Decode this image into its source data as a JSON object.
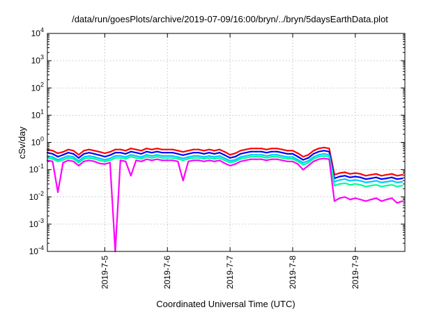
{
  "chart_data": {
    "type": "line",
    "title": "/data/run/goesPlots/archive/2019-07-09/16:00/bryn/../bryn/5daysEarthData.plot",
    "xlabel": "Coordinated Universal Time (UTC)",
    "ylabel": "cSv/day",
    "yscale": "log",
    "ylim": [
      0.0001,
      10000
    ],
    "xlim": [
      "2019-07-04T02:00",
      "2019-07-09T19:00"
    ],
    "grid": true,
    "y_ticks": [
      {
        "base": "10",
        "exp": "-4",
        "value": 0.0001
      },
      {
        "base": "10",
        "exp": "-3",
        "value": 0.001
      },
      {
        "base": "10",
        "exp": "-2",
        "value": 0.01
      },
      {
        "base": "10",
        "exp": "-1",
        "value": 0.1
      },
      {
        "base": "10",
        "exp": "0",
        "value": 1
      },
      {
        "base": "10",
        "exp": "1",
        "value": 10
      },
      {
        "base": "10",
        "exp": "2",
        "value": 100
      },
      {
        "base": "10",
        "exp": "3",
        "value": 1000
      },
      {
        "base": "10",
        "exp": "4",
        "value": 10000
      }
    ],
    "x_ticks": [
      {
        "label": "2019-7-5",
        "value": "2019-07-05T00:00"
      },
      {
        "label": "2019-7-6",
        "value": "2019-07-06T00:00"
      },
      {
        "label": "2019-7-7",
        "value": "2019-07-07T00:00"
      },
      {
        "label": "2019-7-8",
        "value": "2019-07-08T00:00"
      },
      {
        "label": "2019-7-9",
        "value": "2019-07-09T00:00"
      }
    ],
    "x": [
      "2019-07-04T02:00",
      "2019-07-04T04:00",
      "2019-07-04T06:00",
      "2019-07-04T08:00",
      "2019-07-04T10:00",
      "2019-07-04T12:00",
      "2019-07-04T14:00",
      "2019-07-04T16:00",
      "2019-07-04T18:00",
      "2019-07-04T20:00",
      "2019-07-04T22:00",
      "2019-07-05T00:00",
      "2019-07-05T02:00",
      "2019-07-05T04:00",
      "2019-07-05T06:00",
      "2019-07-05T08:00",
      "2019-07-05T10:00",
      "2019-07-05T12:00",
      "2019-07-05T14:00",
      "2019-07-05T16:00",
      "2019-07-05T18:00",
      "2019-07-05T20:00",
      "2019-07-05T22:00",
      "2019-07-06T00:00",
      "2019-07-06T02:00",
      "2019-07-06T04:00",
      "2019-07-06T06:00",
      "2019-07-06T08:00",
      "2019-07-06T10:00",
      "2019-07-06T12:00",
      "2019-07-06T14:00",
      "2019-07-06T16:00",
      "2019-07-06T18:00",
      "2019-07-06T20:00",
      "2019-07-06T22:00",
      "2019-07-07T00:00",
      "2019-07-07T02:00",
      "2019-07-07T04:00",
      "2019-07-07T06:00",
      "2019-07-07T08:00",
      "2019-07-07T10:00",
      "2019-07-07T12:00",
      "2019-07-07T14:00",
      "2019-07-07T16:00",
      "2019-07-07T18:00",
      "2019-07-07T20:00",
      "2019-07-07T22:00",
      "2019-07-08T00:00",
      "2019-07-08T02:00",
      "2019-07-08T04:00",
      "2019-07-08T06:00",
      "2019-07-08T08:00",
      "2019-07-08T10:00",
      "2019-07-08T12:00",
      "2019-07-08T14:00",
      "2019-07-08T16:00",
      "2019-07-08T18:00",
      "2019-07-08T20:00",
      "2019-07-08T22:00",
      "2019-07-09T00:00",
      "2019-07-09T02:00",
      "2019-07-09T04:00",
      "2019-07-09T06:00",
      "2019-07-09T08:00",
      "2019-07-09T10:00",
      "2019-07-09T12:00",
      "2019-07-09T14:00",
      "2019-07-09T16:00",
      "2019-07-09T18:00"
    ],
    "series": [
      {
        "color": "#ff0000",
        "values": [
          0.55,
          0.5,
          0.4,
          0.45,
          0.55,
          0.5,
          0.35,
          0.5,
          0.55,
          0.5,
          0.45,
          0.4,
          0.45,
          0.55,
          0.55,
          0.5,
          0.6,
          0.55,
          0.5,
          0.6,
          0.55,
          0.6,
          0.55,
          0.55,
          0.55,
          0.5,
          0.45,
          0.5,
          0.55,
          0.55,
          0.5,
          0.55,
          0.5,
          0.55,
          0.45,
          0.35,
          0.4,
          0.5,
          0.55,
          0.6,
          0.6,
          0.6,
          0.55,
          0.6,
          0.6,
          0.55,
          0.5,
          0.5,
          0.4,
          0.3,
          0.35,
          0.5,
          0.6,
          0.65,
          0.6,
          0.065,
          0.075,
          0.08,
          0.07,
          0.075,
          0.07,
          0.06,
          0.065,
          0.07,
          0.06,
          0.065,
          0.07,
          0.06,
          0.065
        ]
      },
      {
        "color": "#0000ff",
        "values": [
          0.42,
          0.38,
          0.3,
          0.35,
          0.42,
          0.38,
          0.27,
          0.38,
          0.42,
          0.38,
          0.34,
          0.3,
          0.34,
          0.42,
          0.42,
          0.38,
          0.46,
          0.42,
          0.38,
          0.46,
          0.42,
          0.46,
          0.42,
          0.42,
          0.42,
          0.38,
          0.34,
          0.38,
          0.42,
          0.42,
          0.38,
          0.42,
          0.38,
          0.42,
          0.34,
          0.27,
          0.3,
          0.38,
          0.42,
          0.46,
          0.46,
          0.46,
          0.42,
          0.46,
          0.46,
          0.42,
          0.38,
          0.38,
          0.3,
          0.23,
          0.27,
          0.38,
          0.46,
          0.5,
          0.46,
          0.048,
          0.056,
          0.06,
          0.052,
          0.056,
          0.052,
          0.045,
          0.048,
          0.052,
          0.045,
          0.048,
          0.052,
          0.045,
          0.048
        ]
      },
      {
        "color": "#00c8ff",
        "values": [
          0.32,
          0.29,
          0.23,
          0.27,
          0.32,
          0.29,
          0.21,
          0.29,
          0.32,
          0.29,
          0.26,
          0.23,
          0.26,
          0.32,
          0.32,
          0.29,
          0.35,
          0.32,
          0.29,
          0.35,
          0.32,
          0.35,
          0.32,
          0.32,
          0.32,
          0.29,
          0.26,
          0.29,
          0.32,
          0.32,
          0.29,
          0.32,
          0.29,
          0.32,
          0.26,
          0.21,
          0.23,
          0.29,
          0.32,
          0.35,
          0.35,
          0.35,
          0.32,
          0.35,
          0.35,
          0.32,
          0.29,
          0.29,
          0.23,
          0.18,
          0.21,
          0.29,
          0.35,
          0.38,
          0.35,
          0.036,
          0.042,
          0.045,
          0.039,
          0.042,
          0.039,
          0.034,
          0.036,
          0.039,
          0.034,
          0.036,
          0.039,
          0.034,
          0.036
        ]
      },
      {
        "color": "#00ff96",
        "values": [
          0.27,
          0.25,
          0.2,
          0.23,
          0.27,
          0.25,
          0.18,
          0.25,
          0.27,
          0.25,
          0.22,
          0.2,
          0.22,
          0.27,
          0.27,
          0.25,
          0.3,
          0.27,
          0.25,
          0.3,
          0.27,
          0.3,
          0.27,
          0.27,
          0.27,
          0.25,
          0.22,
          0.25,
          0.27,
          0.27,
          0.25,
          0.27,
          0.25,
          0.27,
          0.22,
          0.18,
          0.2,
          0.25,
          0.27,
          0.3,
          0.3,
          0.3,
          0.27,
          0.3,
          0.3,
          0.27,
          0.25,
          0.25,
          0.2,
          0.15,
          0.18,
          0.25,
          0.3,
          0.32,
          0.3,
          0.026,
          0.03,
          0.032,
          0.028,
          0.03,
          0.028,
          0.024,
          0.026,
          0.028,
          0.024,
          0.026,
          0.028,
          0.024,
          0.026
        ]
      },
      {
        "color": "#ff00ff",
        "values": [
          0.22,
          0.2,
          0.015,
          0.18,
          0.22,
          0.2,
          0.14,
          0.2,
          0.22,
          0.2,
          0.17,
          0.16,
          0.18,
          0.0001,
          0.22,
          0.2,
          0.06,
          0.22,
          0.2,
          0.24,
          0.22,
          0.24,
          0.22,
          0.22,
          0.22,
          0.2,
          0.04,
          0.2,
          0.22,
          0.22,
          0.2,
          0.22,
          0.2,
          0.22,
          0.17,
          0.14,
          0.16,
          0.2,
          0.22,
          0.24,
          0.24,
          0.24,
          0.22,
          0.24,
          0.24,
          0.22,
          0.2,
          0.2,
          0.16,
          0.1,
          0.14,
          0.2,
          0.24,
          0.26,
          0.24,
          0.007,
          0.009,
          0.01,
          0.008,
          0.009,
          0.008,
          0.007,
          0.008,
          0.009,
          0.007,
          0.008,
          0.009,
          0.006,
          0.007
        ]
      }
    ]
  }
}
